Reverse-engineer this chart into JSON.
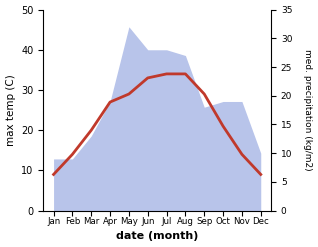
{
  "months": [
    "Jan",
    "Feb",
    "Mar",
    "Apr",
    "May",
    "Jun",
    "Jul",
    "Aug",
    "Sep",
    "Oct",
    "Nov",
    "Dec"
  ],
  "temperature": [
    9,
    14,
    20,
    27,
    29,
    33,
    34,
    34,
    29,
    21,
    14,
    9
  ],
  "precipitation": [
    9,
    9,
    13,
    19,
    32,
    28,
    28,
    27,
    18,
    19,
    19,
    10
  ],
  "temp_color": "#c0392b",
  "precip_fill_color": "#b8c4ea",
  "xlabel": "date (month)",
  "ylabel_left": "max temp (C)",
  "ylabel_right": "med. precipitation (kg/m2)",
  "ylim_left": [
    0,
    50
  ],
  "ylim_right": [
    0,
    35
  ],
  "yticks_left": [
    0,
    10,
    20,
    30,
    40,
    50
  ],
  "yticks_right": [
    0,
    5,
    10,
    15,
    20,
    25,
    30,
    35
  ],
  "line_width": 2.0
}
